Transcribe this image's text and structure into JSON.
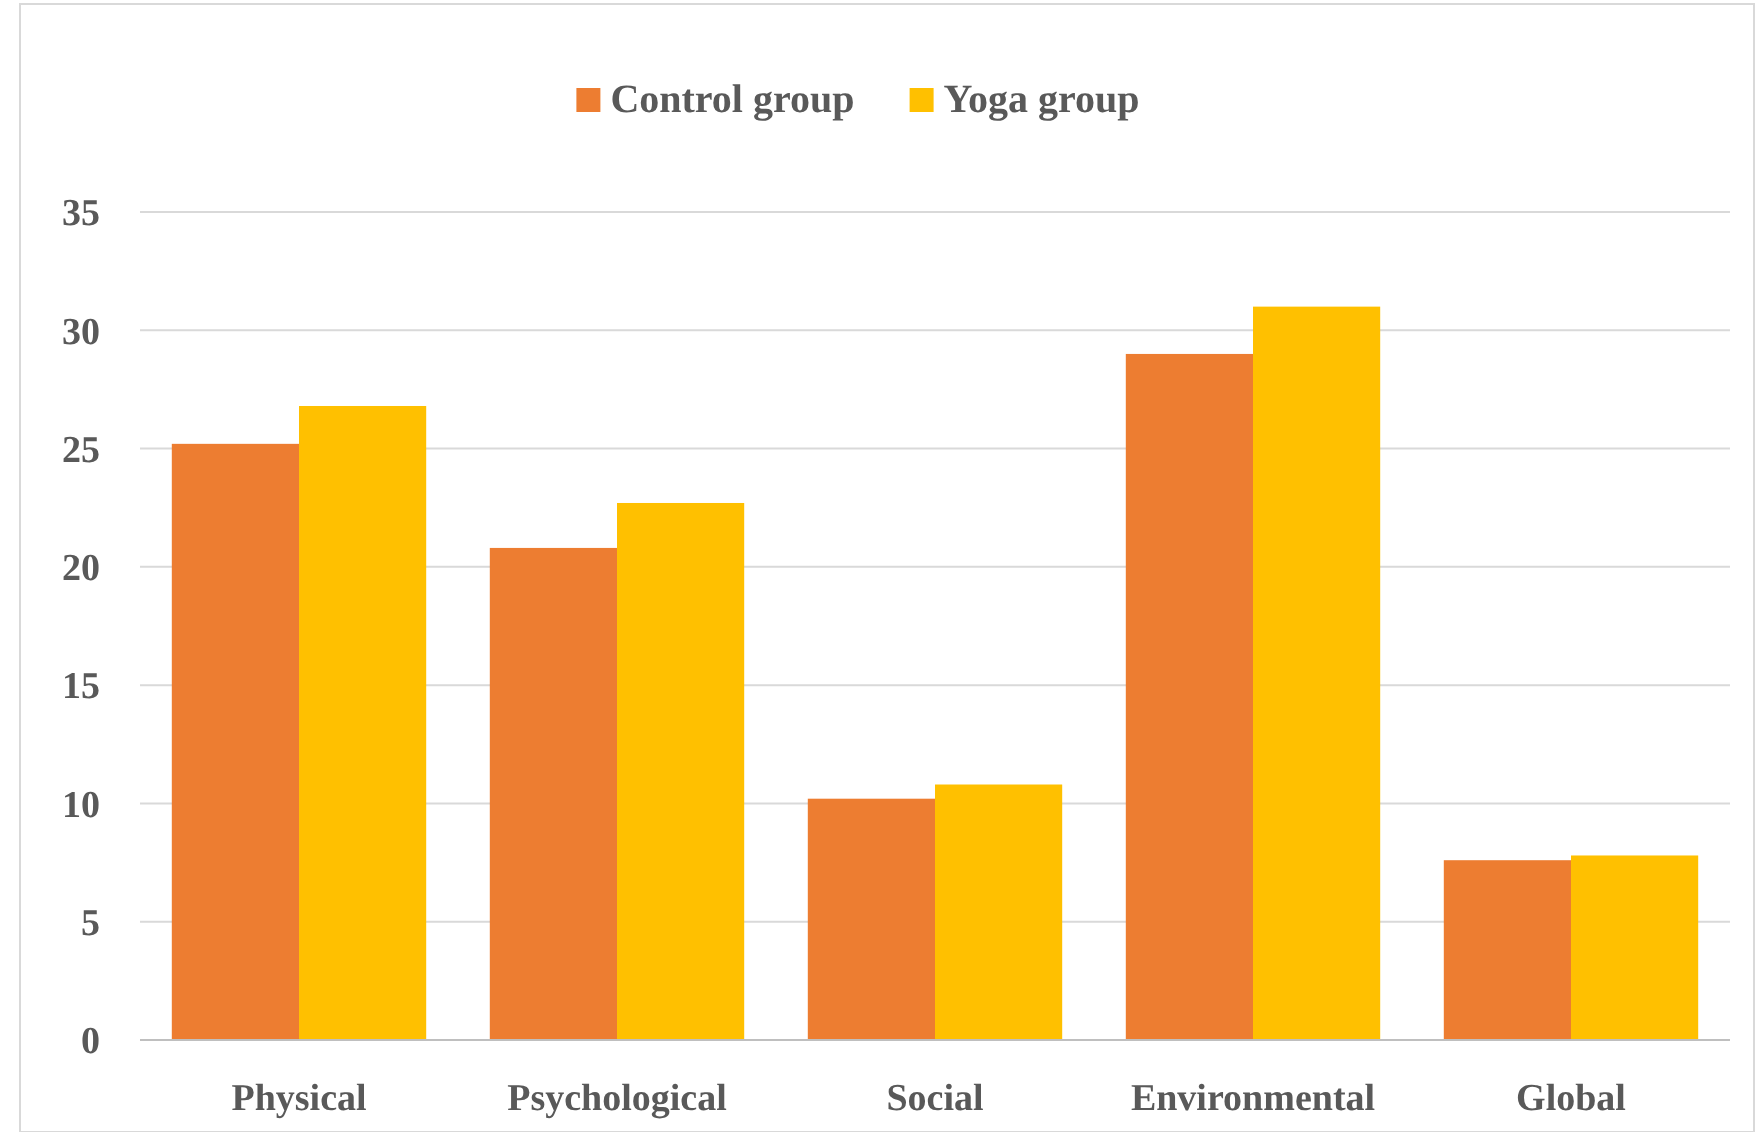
{
  "chart_data": {
    "type": "bar",
    "categories": [
      "Physical",
      "Psychological",
      "Social",
      "Environmental",
      "Global"
    ],
    "series": [
      {
        "name": "Control group",
        "color": "#ed7d31",
        "values": [
          25.2,
          20.8,
          10.2,
          29.0,
          7.6
        ]
      },
      {
        "name": "Yoga group",
        "color": "#ffc000",
        "values": [
          26.8,
          22.7,
          10.8,
          31.0,
          7.8
        ]
      }
    ],
    "ylim": [
      0,
      35
    ],
    "yticks": [
      0,
      5,
      10,
      15,
      20,
      25,
      30,
      35
    ],
    "grid": "y",
    "legend": "top"
  }
}
